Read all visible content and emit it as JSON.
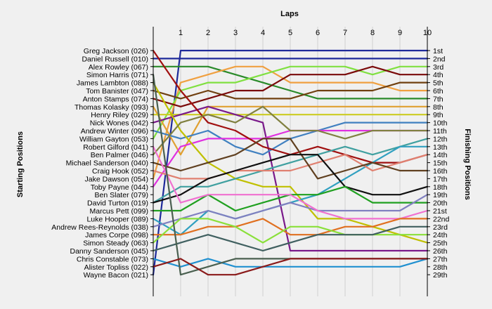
{
  "chart_data": {
    "type": "line",
    "title": "Laps",
    "ylabel_left": "Starting Positions",
    "ylabel_right": "Finishing Positions",
    "x": [
      0,
      1,
      2,
      3,
      4,
      5,
      6,
      7,
      8,
      9,
      10
    ],
    "x_tick_labels": [
      "1",
      "2",
      "3",
      "4",
      "5",
      "6",
      "7",
      "8",
      "9",
      "10"
    ],
    "y_position_range": [
      1,
      29
    ],
    "grid": "vertical",
    "drivers": [
      "Greg Jackson (026)",
      "Daniel Russell (010)",
      "Alex Rowley (067)",
      "Simon Harris (071)",
      "James Lambton (088)",
      "Tom Banister (047)",
      "Anton Stamps (074)",
      "Thomas Kolasky (093)",
      "Henry Riley (029)",
      "Nick Wones (042)",
      "Andrew Winter (096)",
      "William Gayton (053)",
      "Robert Gilford (041)",
      "Ben Palmer (046)",
      "Michael Sanderson (040)",
      "Craig Hook (052)",
      "Jake Dawson (054)",
      "Toby Payne (044)",
      "Ben Slater (079)",
      "David Turton (019)",
      "Marcus Pett (099)",
      "Luke Hooper (089)",
      "Andrew Rees-Reynolds (038)",
      "James Corpe (098)",
      "Simon Steady (063)",
      "Danny Sanderson (045)",
      "Chris Constable (073)",
      "Alister Topliss (022)",
      "Wayne Bacon (021)"
    ],
    "finishing_labels": [
      "1st",
      "2nd",
      "3rd",
      "4th",
      "5th",
      "6th",
      "7th",
      "8th",
      "9th",
      "10th",
      "11th",
      "12th",
      "13th",
      "14th",
      "15th",
      "16th",
      "17th",
      "18th",
      "19th",
      "20th",
      "21st",
      "22nd",
      "23rd",
      "24th",
      "25th",
      "26th",
      "27th",
      "28th",
      "29th"
    ],
    "series": [
      {
        "color": "#1e2a9a",
        "values": [
          29,
          1,
          1,
          1,
          1,
          1,
          1,
          1,
          1,
          1,
          1
        ]
      },
      {
        "color": "#1e2a9a",
        "values": [
          2,
          2,
          2,
          2,
          2,
          2,
          2,
          2,
          2,
          2,
          2
        ]
      },
      {
        "color": "#2a8a2a",
        "values": [
          3,
          3,
          3,
          4,
          5,
          6,
          7,
          7,
          7,
          7,
          7
        ]
      },
      {
        "color": "#f0a040",
        "values": [
          17,
          5,
          4,
          3,
          3,
          5,
          5,
          5,
          5,
          6,
          6
        ]
      },
      {
        "color": "#80e040",
        "values": [
          12,
          6,
          5,
          5,
          4,
          3,
          3,
          3,
          4,
          3,
          3
        ]
      },
      {
        "color": "#704010",
        "values": [
          6,
          7,
          6,
          7,
          7,
          7,
          6,
          6,
          6,
          5,
          5
        ]
      },
      {
        "color": "#7a0a0a",
        "values": [
          7,
          8,
          7,
          6,
          6,
          4,
          4,
          4,
          3,
          4,
          4
        ]
      },
      {
        "color": "#e0a030",
        "values": [
          8,
          14,
          8,
          8,
          8,
          8,
          8,
          8,
          8,
          8,
          8
        ]
      },
      {
        "color": "#cccc22",
        "values": [
          9,
          9,
          9,
          9,
          9,
          9,
          9,
          9,
          9,
          9,
          9
        ]
      },
      {
        "color": "#7a1a8a",
        "values": [
          10,
          9,
          8,
          9,
          10,
          26,
          26,
          26,
          26,
          26,
          26
        ]
      },
      {
        "color": "#4080c0",
        "values": [
          11,
          12,
          11,
          13,
          14,
          12,
          11,
          10,
          10,
          10,
          10
        ]
      },
      {
        "color": "#e030e0",
        "values": [
          18,
          13,
          12,
          12,
          12,
          11,
          11,
          11,
          11,
          11,
          11
        ]
      },
      {
        "color": "#a01010",
        "values": [
          1,
          6,
          10,
          11,
          13,
          14,
          13,
          14,
          15,
          15,
          14
        ]
      },
      {
        "color": "#c0c000",
        "values": [
          5,
          11,
          15,
          17,
          18,
          18,
          22,
          22,
          23,
          24,
          25
        ]
      },
      {
        "color": "#808040",
        "values": [
          14,
          10,
          9,
          10,
          8,
          11,
          11,
          12,
          11,
          11,
          11
        ]
      },
      {
        "color": "#40a0a0",
        "values": [
          20,
          18,
          18,
          17,
          16,
          15,
          14,
          13,
          14,
          13,
          12
        ]
      },
      {
        "color": "#30a0c0",
        "values": [
          22,
          24,
          21,
          22,
          21,
          20,
          19,
          17,
          15,
          13,
          13
        ]
      },
      {
        "color": "#e08070",
        "values": [
          16,
          17,
          17,
          16,
          16,
          16,
          15,
          14,
          16,
          15,
          14
        ]
      },
      {
        "color": "#604020",
        "values": [
          15,
          16,
          15,
          14,
          12,
          12,
          17,
          16,
          15,
          16,
          16
        ]
      },
      {
        "color": "#101010",
        "values": [
          20,
          19,
          17,
          16,
          15,
          14,
          14,
          18,
          19,
          19,
          18
        ]
      },
      {
        "color": "#20a020",
        "values": [
          21,
          21,
          19,
          21,
          20,
          19,
          19,
          18,
          20,
          20,
          20
        ]
      },
      {
        "color": "#8080c0",
        "values": [
          23,
          22,
          21,
          22,
          21,
          20,
          21,
          21,
          21,
          21,
          19
        ]
      },
      {
        "color": "#f070d0",
        "values": [
          13,
          20,
          19,
          19,
          19,
          19,
          21,
          22,
          22,
          22,
          21
        ]
      },
      {
        "color": "#e07020",
        "values": [
          24,
          24,
          23,
          23,
          22,
          24,
          24,
          23,
          23,
          22,
          22
        ]
      },
      {
        "color": "#8ae03a",
        "values": [
          25,
          22,
          22,
          23,
          25,
          23,
          23,
          24,
          24,
          24,
          24
        ]
      },
      {
        "color": "#406060",
        "values": [
          26,
          25,
          24,
          25,
          26,
          25,
          24,
          24,
          24,
          23,
          23
        ]
      },
      {
        "color": "#2090d0",
        "values": [
          27,
          28,
          27,
          28,
          28,
          28,
          28,
          28,
          28,
          28,
          27
        ]
      },
      {
        "color": "#4a6050",
        "values": [
          4,
          29,
          28,
          27,
          27,
          27,
          27,
          27,
          27,
          27,
          27
        ]
      },
      {
        "color": "#8a1a1a",
        "values": [
          28,
          27,
          29,
          29,
          28,
          27,
          27,
          27,
          27,
          27,
          27
        ]
      }
    ]
  }
}
